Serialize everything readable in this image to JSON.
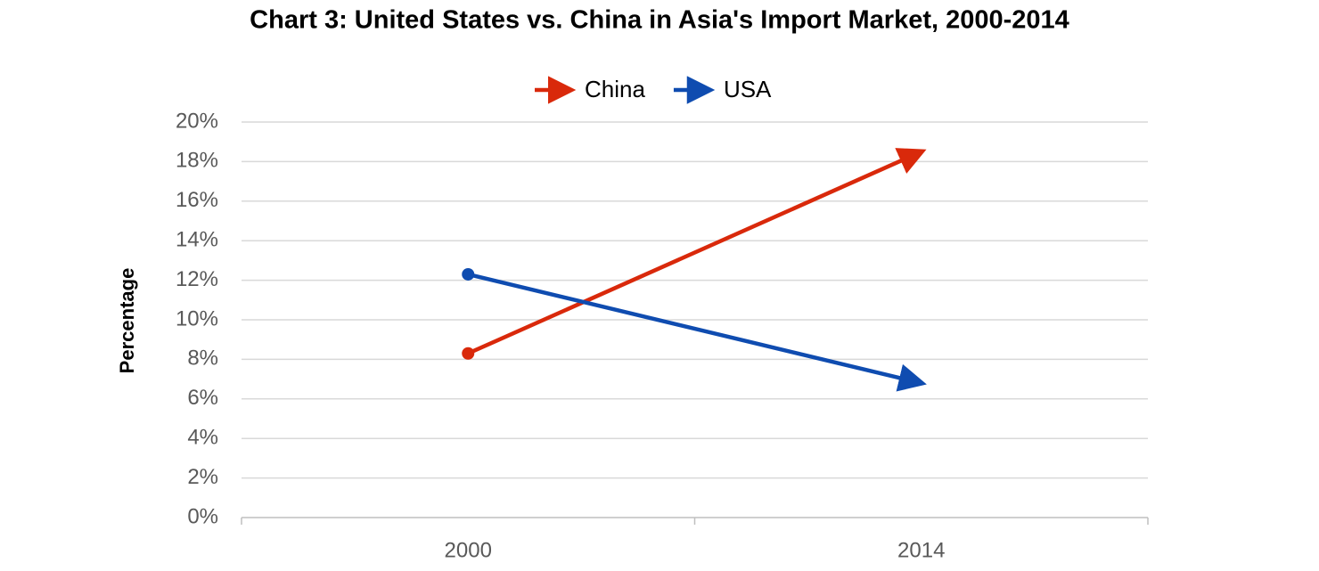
{
  "chart_data": {
    "type": "line",
    "title": "Chart 3: United States vs. China in Asia's Import Market, 2000-2014",
    "y_label": "Percentage",
    "categories": [
      "2000",
      "2014"
    ],
    "series": [
      {
        "name": "China",
        "color": "#d9290b",
        "values": [
          8.3,
          18.5
        ]
      },
      {
        "name": "USA",
        "color": "#0f4cb0",
        "values": [
          12.3,
          6.8
        ]
      }
    ],
    "ylim": [
      0,
      20
    ],
    "yticks": [
      {
        "value": 0,
        "label": "0%"
      },
      {
        "value": 2,
        "label": "2%"
      },
      {
        "value": 4,
        "label": "4%"
      },
      {
        "value": 6,
        "label": "6%"
      },
      {
        "value": 8,
        "label": "8%"
      },
      {
        "value": 10,
        "label": "10%"
      },
      {
        "value": 12,
        "label": "12%"
      },
      {
        "value": 14,
        "label": "14%"
      },
      {
        "value": 16,
        "label": "16%"
      },
      {
        "value": 18,
        "label": "18%"
      },
      {
        "value": 20,
        "label": "20%"
      }
    ],
    "grid": true,
    "legend": "top"
  }
}
